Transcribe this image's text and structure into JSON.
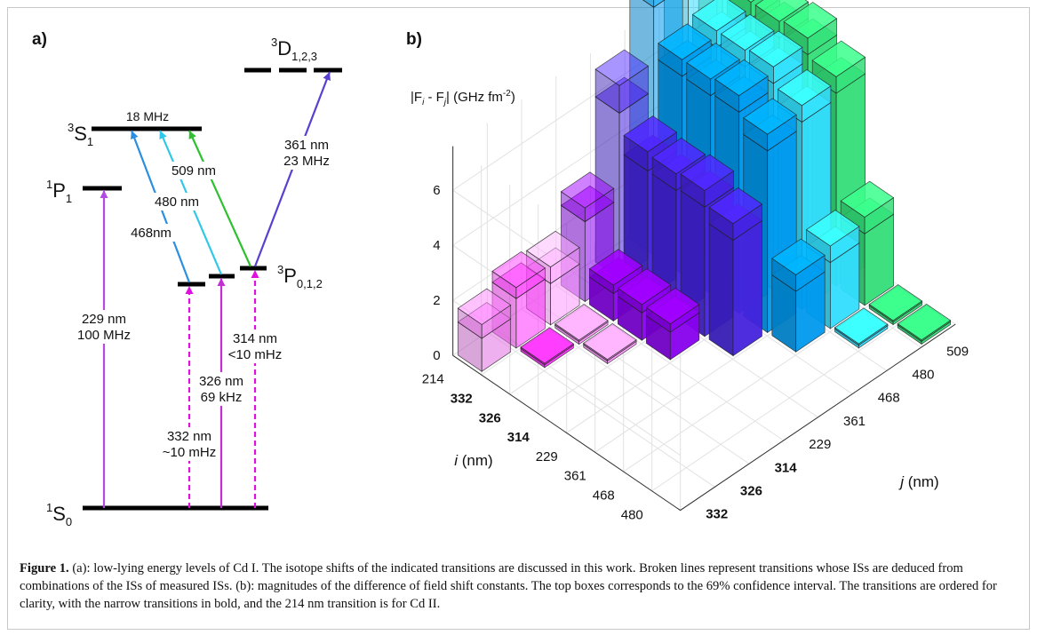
{
  "panel_a": {
    "label": "a)",
    "levels": {
      "s0": {
        "main": "S",
        "sup": "1",
        "sub": "0"
      },
      "p1": {
        "main": "P",
        "sup": "1",
        "sub": "1"
      },
      "s1": {
        "main": "S",
        "sup": "3",
        "sub": "1"
      },
      "p012": {
        "main": "P",
        "sup": "3",
        "sub": "0,1,2"
      },
      "d123": {
        "main": "D",
        "sup": "3",
        "sub": "1,2,3"
      }
    },
    "s1_width": "18 MHz",
    "transitions": [
      {
        "key": "t229",
        "lines": [
          "229 nm",
          "100 MHz"
        ],
        "color": "#b44be1",
        "style": "solid"
      },
      {
        "key": "t332",
        "lines": [
          "332 nm",
          "~10 mHz"
        ],
        "color": "#e010e0",
        "style": "dashed"
      },
      {
        "key": "t326",
        "lines": [
          "326 nm",
          "69 kHz"
        ],
        "color": "#c22fd4",
        "style": "solid"
      },
      {
        "key": "t314",
        "lines": [
          "314 nm",
          "<10 mHz"
        ],
        "color": "#e010e0",
        "style": "dashed"
      },
      {
        "key": "t468",
        "lines": [
          "468nm"
        ],
        "color": "#2a8fe0",
        "style": "solid"
      },
      {
        "key": "t480",
        "lines": [
          "480 nm"
        ],
        "color": "#30c8e8",
        "style": "solid"
      },
      {
        "key": "t509",
        "lines": [
          "509 nm"
        ],
        "color": "#2ec02e",
        "style": "solid"
      },
      {
        "key": "t361",
        "lines": [
          "361 nm",
          "23 MHz"
        ],
        "color": "#5a3fd0",
        "style": "solid"
      }
    ]
  },
  "panel_b": {
    "label": "b)",
    "zlabel_parts": [
      "|F",
      "i",
      " - F",
      "j",
      "| (GHz fm",
      "-2",
      ")"
    ],
    "ylabel_i": {
      "var": "i",
      "unit": " (nm)"
    },
    "ylabel_j": {
      "var": "j",
      "unit": " (nm)"
    }
  },
  "chart_data": {
    "type": "bar3d",
    "zlabel": "|Fi - Fj| (GHz fm-2)",
    "i_label": "i (nm)",
    "j_label": "j (nm)",
    "z_ticks": [
      0,
      2,
      4,
      6
    ],
    "i_ticks": [
      "214",
      "332",
      "326",
      "314",
      "229",
      "361",
      "468",
      "480"
    ],
    "i_bold": [
      false,
      true,
      true,
      true,
      false,
      false,
      false,
      false
    ],
    "j_ticks": [
      "332",
      "326",
      "314",
      "229",
      "361",
      "468",
      "480",
      "509"
    ],
    "j_bold": [
      true,
      true,
      true,
      false,
      false,
      false,
      false,
      false
    ],
    "bars": [
      {
        "i": "214",
        "j": "332",
        "value": 1.2,
        "upper": 1.7
      },
      {
        "i": "214",
        "j": "326",
        "value": 1.8,
        "upper": 2.2
      },
      {
        "i": "214",
        "j": "314",
        "value": 1.5,
        "upper": 2.1
      },
      {
        "i": "214",
        "j": "229",
        "value": 2.9,
        "upper": 3.4
      },
      {
        "i": "214",
        "j": "361",
        "value": 6.0,
        "upper": 7.0
      },
      {
        "i": "214",
        "j": "468",
        "value": 9.0,
        "upper": 9.6
      },
      {
        "i": "214",
        "j": "480",
        "value": 9.1,
        "upper": 9.7
      },
      {
        "i": "214",
        "j": "509",
        "value": 9.3,
        "upper": 9.9
      },
      {
        "i": "332",
        "j": "326",
        "value": 0.1,
        "upper": 0.15
      },
      {
        "i": "332",
        "j": "314",
        "value": 0.1,
        "upper": 0.15
      },
      {
        "i": "332",
        "j": "229",
        "value": 1.0,
        "upper": 1.3
      },
      {
        "i": "332",
        "j": "361",
        "value": 4.6,
        "upper": 5.3
      },
      {
        "i": "332",
        "j": "468",
        "value": 7.2,
        "upper": 7.8
      },
      {
        "i": "332",
        "j": "480",
        "value": 7.4,
        "upper": 8.0
      },
      {
        "i": "332",
        "j": "509",
        "value": 7.6,
        "upper": 8.2
      },
      {
        "i": "326",
        "j": "314",
        "value": 0.1,
        "upper": 0.15
      },
      {
        "i": "326",
        "j": "229",
        "value": 1.0,
        "upper": 1.3
      },
      {
        "i": "326",
        "j": "361",
        "value": 4.6,
        "upper": 5.2
      },
      {
        "i": "326",
        "j": "468",
        "value": 7.2,
        "upper": 7.8
      },
      {
        "i": "326",
        "j": "480",
        "value": 7.4,
        "upper": 8.0
      },
      {
        "i": "326",
        "j": "509",
        "value": 7.6,
        "upper": 8.2
      },
      {
        "i": "314",
        "j": "229",
        "value": 1.0,
        "upper": 1.3
      },
      {
        "i": "314",
        "j": "361",
        "value": 4.7,
        "upper": 5.3
      },
      {
        "i": "314",
        "j": "468",
        "value": 7.3,
        "upper": 7.9
      },
      {
        "i": "314",
        "j": "480",
        "value": 7.5,
        "upper": 8.1
      },
      {
        "i": "314",
        "j": "509",
        "value": 7.7,
        "upper": 8.3
      },
      {
        "i": "229",
        "j": "361",
        "value": 4.2,
        "upper": 4.8
      },
      {
        "i": "229",
        "j": "468",
        "value": 6.6,
        "upper": 7.2
      },
      {
        "i": "229",
        "j": "480",
        "value": 6.8,
        "upper": 7.4
      },
      {
        "i": "229",
        "j": "509",
        "value": 7.0,
        "upper": 7.6
      },
      {
        "i": "361",
        "j": "468",
        "value": 2.2,
        "upper": 2.8
      },
      {
        "i": "361",
        "j": "480",
        "value": 2.4,
        "upper": 3.0
      },
      {
        "i": "361",
        "j": "509",
        "value": 2.6,
        "upper": 3.2
      },
      {
        "i": "468",
        "j": "480",
        "value": 0.1,
        "upper": 0.15
      },
      {
        "i": "468",
        "j": "509",
        "value": 0.1,
        "upper": 0.15
      },
      {
        "i": "480",
        "j": "509",
        "value": 0.1,
        "upper": 0.15
      }
    ],
    "colors_by_j": {
      "332": "#e070e0",
      "326": "#ff33ff",
      "314": "#ff99ff",
      "229": "#8800ee",
      "361": "#4422dd",
      "468": "#0099ee",
      "480": "#33ddff",
      "509": "#33dd77"
    }
  },
  "caption": {
    "fig_label": "Figure 1.",
    "text": " (a): low-lying energy levels of Cd I. The isotope shifts of the indicated transitions are discussed in this work. Broken lines represent transitions whose ISs are deduced from combinations of the ISs of measured ISs. (b): magnitudes of the difference of field shift constants. The top boxes corresponds to the 69% confidence interval. The transitions are ordered for clarity, with the narrow transitions in bold, and the 214 nm transition is for Cd II."
  }
}
